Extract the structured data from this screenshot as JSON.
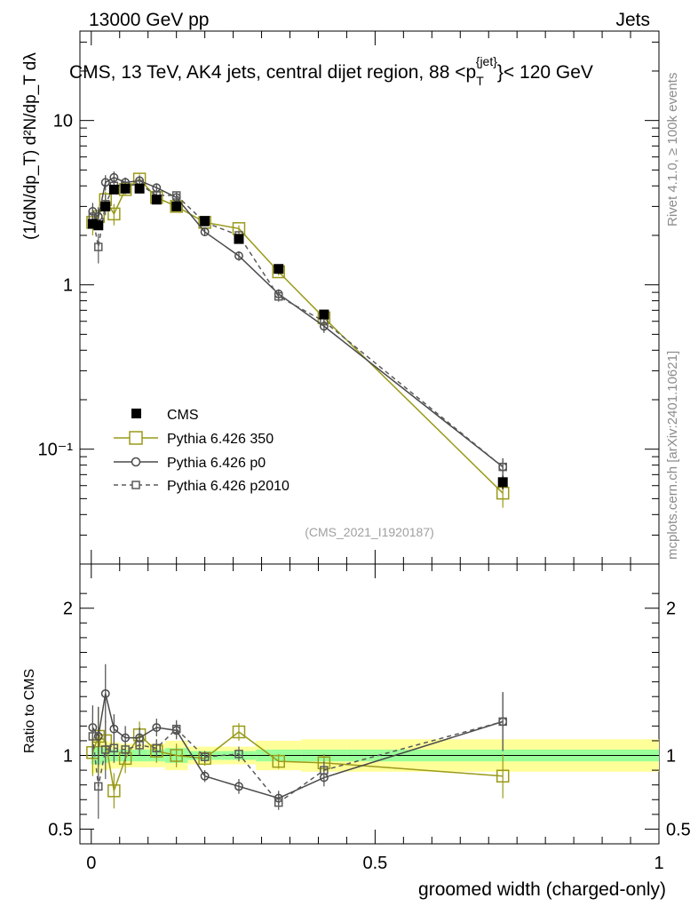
{
  "header": {
    "energy": "13000 GeV pp",
    "category": "Jets"
  },
  "side_labels": {
    "rivet": "Rivet 4.1.0, ≥ 100k events",
    "mcplots": "mcplots.cern.ch [arXiv:2401.10621]"
  },
  "chart_data": {
    "type": "line",
    "title": "CMS, 13 TeV, AK4 jets, central dijet region, 88 <p_T^{jet}< 120 GeV",
    "title_pre": "CMS, 13 TeV, AK4 jets, central dijet region, 88 <p",
    "title_sub": "T",
    "title_sup": "{jet}",
    "title_post": "}< 120 GeV",
    "xlabel": "groomed width (charged-only)",
    "ylabel": "(1/dN/dp_T) d²N/dp_T dλ",
    "ratio_ylabel": "Ratio to CMS",
    "watermark": "(CMS_2021_I1920187)",
    "xlim": [
      -0.02,
      1.0
    ],
    "ylim": [
      0.02,
      35
    ],
    "yscale": "log",
    "ratio_ylim": [
      0.4,
      2.3
    ],
    "x_ticks": [
      0,
      0.5,
      1
    ],
    "x_tick_labels": [
      "0",
      "0.5",
      "1"
    ],
    "y_ticks": [
      0.1,
      1,
      10
    ],
    "y_tick_labels": [
      "10⁻¹",
      "1",
      "10"
    ],
    "ratio_ticks": [
      0.5,
      1,
      2
    ],
    "ratio_tick_labels": [
      "0.5",
      "1",
      "2"
    ],
    "legend_position": "lower-left",
    "x": [
      0.0025,
      0.0125,
      0.025,
      0.04,
      0.06,
      0.085,
      0.115,
      0.15,
      0.2,
      0.26,
      0.33,
      0.41,
      0.725
    ],
    "bin_edges": [
      0.0,
      0.005,
      0.02,
      0.03,
      0.05,
      0.07,
      0.1,
      0.13,
      0.17,
      0.23,
      0.29,
      0.37,
      0.45,
      1.0
    ],
    "series": [
      {
        "name": "CMS",
        "marker": "filled-square",
        "line": "none",
        "color": "#000000",
        "values": [
          2.35,
          2.3,
          3.0,
          3.8,
          3.85,
          3.85,
          3.3,
          3.0,
          2.45,
          1.9,
          1.25,
          0.66,
          0.063
        ],
        "errors": [
          0.12,
          0.12,
          0.15,
          0.18,
          0.18,
          0.18,
          0.15,
          0.14,
          0.11,
          0.09,
          0.06,
          0.04,
          0.006
        ],
        "ratio_band_total": [
          0.12,
          0.12,
          0.1,
          0.09,
          0.08,
          0.08,
          0.08,
          0.1,
          0.06,
          0.06,
          0.1,
          0.11,
          0.11
        ],
        "ratio_band_stat": [
          0.06,
          0.06,
          0.05,
          0.04,
          0.04,
          0.04,
          0.04,
          0.05,
          0.03,
          0.03,
          0.04,
          0.04,
          0.04
        ]
      },
      {
        "name": "Pythia 6.426 350",
        "marker": "open-square-large",
        "line": "solid",
        "color": "#9a9a1a",
        "values": [
          2.4,
          2.6,
          3.3,
          2.7,
          3.8,
          4.4,
          3.4,
          3.0,
          2.4,
          2.2,
          1.2,
          0.63,
          0.054
        ],
        "errors": [
          0.4,
          0.4,
          0.4,
          0.4,
          0.3,
          0.3,
          0.2,
          0.2,
          0.1,
          0.1,
          0.06,
          0.05,
          0.01
        ],
        "ratio": [
          1.02,
          1.13,
          1.1,
          0.76,
          0.98,
          1.14,
          1.03,
          1.0,
          0.98,
          1.16,
          0.96,
          0.95,
          0.86
        ],
        "ratio_errors": [
          0.16,
          0.2,
          0.14,
          0.12,
          0.1,
          0.09,
          0.08,
          0.08,
          0.05,
          0.06,
          0.05,
          0.06,
          0.15
        ]
      },
      {
        "name": "Pythia 6.426 p0",
        "marker": "open-circle",
        "line": "solid",
        "color": "#4a4a4a",
        "values": [
          2.8,
          2.6,
          4.2,
          4.5,
          4.2,
          4.3,
          3.9,
          3.4,
          2.1,
          1.5,
          0.88,
          0.56,
          0.078
        ],
        "errors": [
          0.35,
          0.35,
          0.45,
          0.4,
          0.3,
          0.3,
          0.25,
          0.2,
          0.1,
          0.1,
          0.06,
          0.05,
          0.01
        ],
        "ratio": [
          1.19,
          1.13,
          1.42,
          1.18,
          1.12,
          1.12,
          1.19,
          1.17,
          0.86,
          0.79,
          0.71,
          0.85,
          1.23
        ],
        "ratio_errors": [
          0.15,
          0.2,
          0.2,
          0.1,
          0.08,
          0.07,
          0.06,
          0.06,
          0.04,
          0.05,
          0.05,
          0.06,
          0.2
        ]
      },
      {
        "name": "Pythia 6.426 p2010",
        "marker": "open-square-small",
        "line": "dashed",
        "color": "#5a5a5a",
        "values": [
          2.6,
          1.7,
          3.1,
          4.0,
          4.0,
          4.1,
          3.5,
          3.5,
          2.4,
          2.0,
          0.85,
          0.6,
          0.078
        ],
        "errors": [
          0.35,
          0.35,
          0.45,
          0.4,
          0.3,
          0.3,
          0.25,
          0.2,
          0.1,
          0.1,
          0.06,
          0.05,
          0.01
        ],
        "ratio": [
          1.13,
          0.79,
          1.04,
          1.05,
          1.04,
          1.07,
          1.05,
          1.18,
          0.99,
          1.01,
          0.68,
          0.9,
          1.23
        ],
        "ratio_errors": [
          0.15,
          0.22,
          0.2,
          0.1,
          0.08,
          0.07,
          0.06,
          0.06,
          0.04,
          0.05,
          0.05,
          0.06,
          0.2
        ]
      }
    ],
    "colors": {
      "band_outer": "#ffff99",
      "band_inner": "#99ff99"
    }
  }
}
